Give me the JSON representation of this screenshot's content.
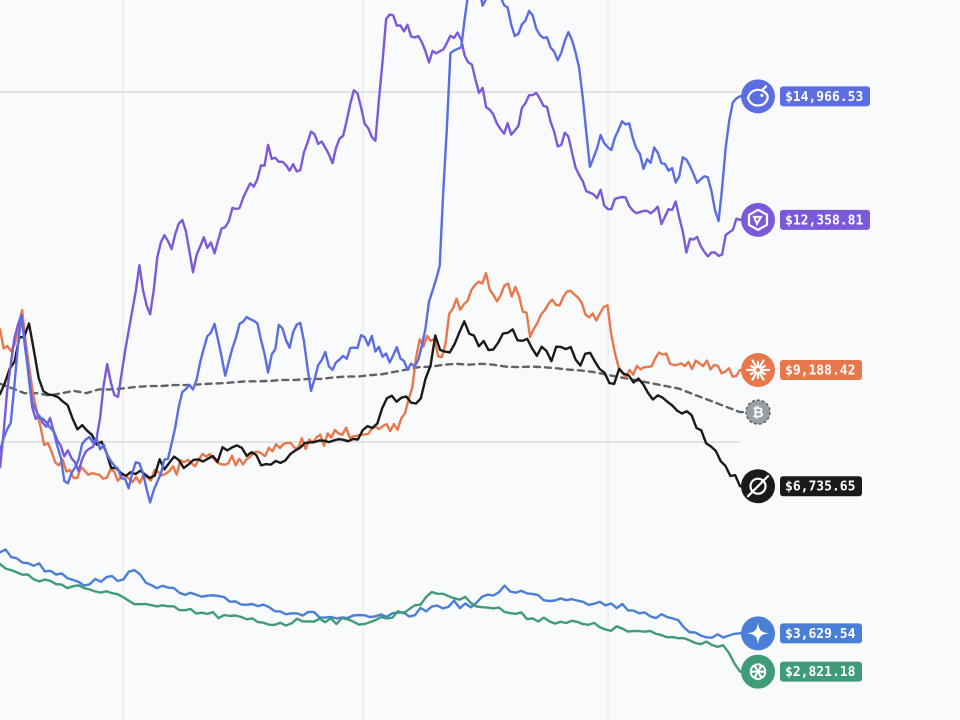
{
  "chart_data": {
    "type": "line",
    "title": "",
    "xlabel": "",
    "ylabel": "",
    "ylim": [
      1800,
      17000
    ],
    "grid": true,
    "legend": "end-of-line labels on right",
    "series": [
      {
        "id": "deepseek",
        "icon": "deepseek-whale-icon",
        "color": "#5b6ee1",
        "end_label": "$14,966.53",
        "values": [
          7600,
          8200,
          10300,
          8400,
          8200,
          8000,
          6800,
          7200,
          7800,
          7600,
          7400,
          7000,
          6700,
          7300,
          6500,
          7100,
          7600,
          8600,
          8800,
          9500,
          10300,
          9200,
          9900,
          10300,
          10200,
          9200,
          10000,
          9800,
          10100,
          8800,
          9500,
          9300,
          9400,
          9600,
          9900,
          9700,
          9400,
          9600,
          9200,
          9500,
          10500,
          11400,
          15800,
          16100,
          17500,
          17000,
          17300,
          17000,
          16200,
          16700,
          16500,
          16100,
          15800,
          16200,
          15700,
          13600,
          14100,
          13900,
          14500,
          14200,
          13400,
          13800,
          13600,
          13200,
          13700,
          13000,
          13400,
          12200,
          14600,
          14966.53
        ]
      },
      {
        "id": "qwen",
        "icon": "qwen-hexagon-icon",
        "color": "#7b5ad9",
        "end_label": "$12,358.81",
        "values": [
          7000,
          9400,
          10400,
          8300,
          8100,
          8000,
          7500,
          7100,
          7400,
          7800,
          9200,
          8500,
          10100,
          11300,
          10400,
          12000,
          11800,
          12500,
          11300,
          11900,
          11800,
          12200,
          12600,
          12900,
          13200,
          13800,
          13700,
          13500,
          13400,
          14100,
          13900,
          13600,
          14200,
          15200,
          14400,
          14000,
          16700,
          16600,
          16400,
          16300,
          15800,
          15900,
          16300,
          16100,
          15500,
          15000,
          14600,
          14300,
          14200,
          14800,
          15000,
          14600,
          14000,
          14100,
          13200,
          12800,
          12900,
          12600,
          12900,
          12500,
          12400,
          12600,
          12300,
          12800,
          11800,
          11900,
          11500,
          11600,
          12100,
          12358.81
        ]
      },
      {
        "id": "btc",
        "icon": "bitcoin-icon",
        "color": "#5f6368",
        "dashed": true,
        "end_label": "",
        "values": [
          8900,
          8800,
          8700,
          8700,
          8650,
          8700,
          8750,
          8700,
          8780,
          8780,
          8800,
          8830,
          8850,
          8850,
          8870,
          8870,
          8880,
          8900,
          8910,
          8930,
          8950,
          8950,
          8960,
          8980,
          8980,
          9000,
          9000,
          9030,
          9050,
          9050,
          9080,
          9100,
          9150,
          9200,
          9250,
          9260,
          9300,
          9320,
          9300,
          9320,
          9300,
          9260,
          9250,
          9260,
          9250,
          9230,
          9200,
          9180,
          9150,
          9100,
          9050,
          9000,
          8950,
          8900,
          8850,
          8800,
          8700,
          8600,
          8500,
          8400,
          8300
        ]
      },
      {
        "id": "claude",
        "icon": "claude-starburst-icon",
        "color": "#e8774b",
        "end_label": "$9,188.42",
        "values": [
          9900,
          9500,
          10400,
          8700,
          7700,
          7300,
          7100,
          7000,
          7100,
          7000,
          7050,
          6900,
          6800,
          7000,
          6950,
          7000,
          7100,
          7250,
          7300,
          7350,
          7150,
          7300,
          7300,
          7450,
          7500,
          7550,
          7600,
          7650,
          7600,
          7700,
          7800,
          7850,
          7900,
          7950,
          7850,
          7900,
          8000,
          8500,
          9800,
          9800,
          9500,
          10600,
          10600,
          10900,
          11100,
          10700,
          10900,
          10800,
          10000,
          10500,
          10600,
          10700,
          10900,
          10400,
          10300,
          10500,
          9300,
          9100,
          9200,
          9400,
          9500,
          9300,
          9350,
          9250,
          9300,
          9200,
          9100,
          9188.42
        ]
      },
      {
        "id": "grok",
        "icon": "grok-slash-icon",
        "color": "#1a1a1a",
        "end_label": "$6,735.65",
        "values": [
          8800,
          9500,
          10200,
          8600,
          8500,
          8200,
          7800,
          7600,
          7100,
          7000,
          6900,
          7200,
          7250,
          7100,
          7300,
          7400,
          7500,
          7350,
          7300,
          7250,
          7500,
          7600,
          7700,
          7750,
          7800,
          7900,
          8200,
          8600,
          8700,
          8500,
          9800,
          9600,
          10200,
          9800,
          9600,
          10000,
          9900,
          9600,
          9500,
          9600,
          9400,
          9500,
          8800,
          9200,
          8900,
          8700,
          8600,
          8300,
          8000,
          7500,
          7200,
          6735.65
        ]
      },
      {
        "id": "gemini",
        "icon": "gemini-star-icon",
        "color": "#4a7fd8",
        "end_label": "$3,629.54",
        "values": [
          5400,
          5200,
          5100,
          4950,
          4850,
          4700,
          4750,
          4800,
          4900,
          4700,
          4550,
          4450,
          4400,
          4350,
          4300,
          4250,
          4200,
          4100,
          4050,
          4000,
          3950,
          3950,
          3950,
          4000,
          4000,
          4100,
          4200,
          4250,
          4200,
          4400,
          4600,
          4500,
          4400,
          4350,
          4400,
          4300,
          4250,
          4200,
          4100,
          4000,
          3900,
          3700,
          3600,
          3550,
          3629.54
        ]
      },
      {
        "id": "gpt",
        "icon": "openai-knot-icon",
        "color": "#3f9b78",
        "end_label": "$2,821.18",
        "values": [
          5100,
          4900,
          4800,
          4700,
          4650,
          4600,
          4500,
          4400,
          4300,
          4200,
          4150,
          4100,
          4050,
          4000,
          3950,
          3900,
          3850,
          3850,
          3900,
          3950,
          3900,
          3850,
          3900,
          3950,
          4100,
          4300,
          4500,
          4400,
          4300,
          4200,
          4100,
          4000,
          3950,
          3900,
          3850,
          3800,
          3750,
          3700,
          3650,
          3600,
          3550,
          3500,
          3450,
          3400,
          2821.18
        ]
      }
    ]
  }
}
